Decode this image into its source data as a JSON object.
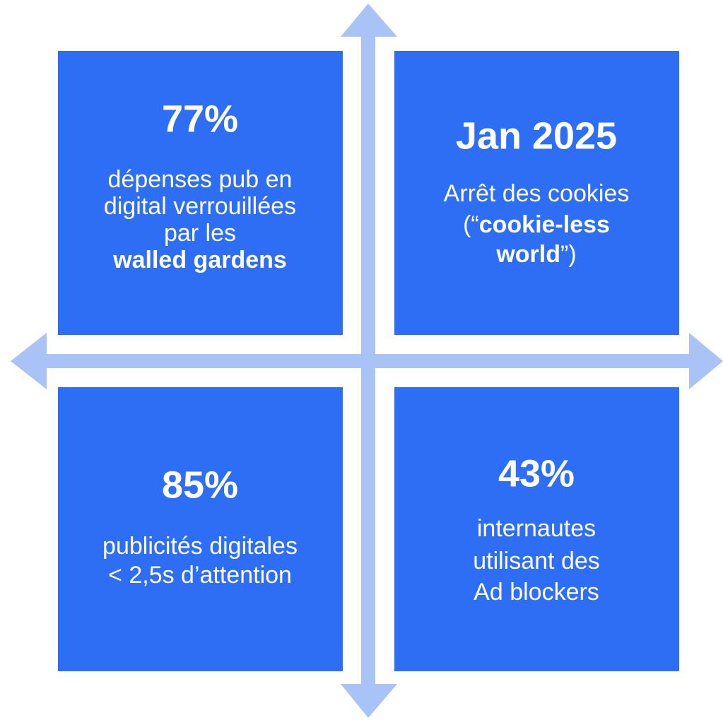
{
  "quadrants": [
    {
      "headline": "77%",
      "lines": [
        [
          {
            "text": "dépenses pub en"
          }
        ],
        [
          {
            "text": "digital verrouillées"
          }
        ],
        [
          {
            "text": "par les"
          }
        ],
        [
          {
            "text": "walled gardens",
            "bold": true
          }
        ]
      ]
    },
    {
      "headline": "Jan 2025",
      "lines": [
        [
          {
            "text": "Arrêt des cookies"
          }
        ],
        [
          {
            "text": "(“"
          },
          {
            "text": "cookie-less",
            "bold": true
          }
        ],
        [
          {
            "text": "world",
            "bold": true
          },
          {
            "text": "”)"
          }
        ]
      ]
    },
    {
      "headline": "85%",
      "lines": [
        [
          {
            "text": "publicités digitales"
          }
        ],
        [
          {
            "text": "< 2,5s d’attention"
          }
        ]
      ]
    },
    {
      "headline": "43%",
      "lines": [
        [
          {
            "text": "internautes"
          }
        ],
        [
          {
            "text": "utilisant des"
          }
        ],
        [
          {
            "text": "Ad blockers"
          }
        ]
      ]
    }
  ]
}
